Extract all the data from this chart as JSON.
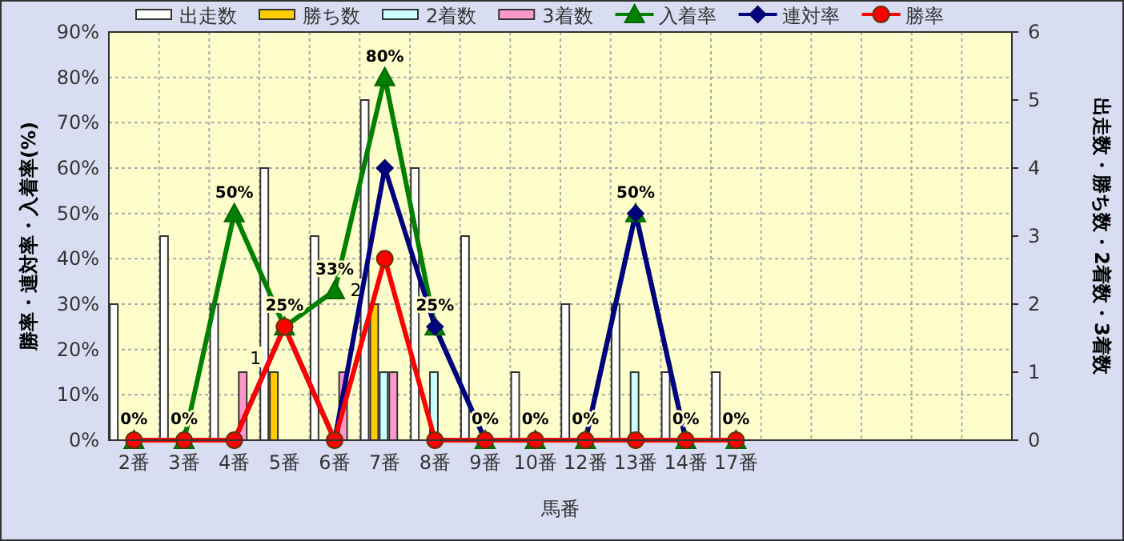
{
  "chart_data": {
    "type": "bar",
    "xlabel": "馬番",
    "ylabel": "勝率・連対率・入着率(%)",
    "y2label": "出走数・勝ち数・2着数・3着数",
    "categories": [
      "2番",
      "3番",
      "4番",
      "5番",
      "6番",
      "7番",
      "8番",
      "9番",
      "10番",
      "12番",
      "13番",
      "14番",
      "17番",
      null,
      null,
      null,
      null,
      null
    ],
    "series": [
      {
        "name": "出走数",
        "axis": "y2",
        "color": "#ffffff",
        "values": [
          2,
          3,
          2,
          4,
          3,
          5,
          4,
          3,
          1,
          2,
          2,
          1,
          1,
          null,
          null,
          null,
          null,
          null
        ]
      },
      {
        "name": "勝ち数",
        "axis": "y2",
        "color": "#ffcc00",
        "values": [
          0,
          0,
          0,
          1,
          0,
          2,
          0,
          0,
          0,
          0,
          0,
          0,
          0,
          null,
          null,
          null,
          null,
          null
        ],
        "value_labels": [
          null,
          null,
          null,
          "1",
          null,
          "2",
          null,
          null,
          null,
          null,
          null,
          null,
          null,
          null,
          null,
          null,
          null,
          null
        ]
      },
      {
        "name": "2着数",
        "axis": "y2",
        "color": "#ccffff",
        "values": [
          0,
          0,
          0,
          0,
          0,
          1,
          1,
          0,
          0,
          0,
          1,
          0,
          0,
          null,
          null,
          null,
          null,
          null
        ]
      },
      {
        "name": "3着数",
        "axis": "y2",
        "color": "#ff99cc",
        "values": [
          0,
          0,
          1,
          0,
          1,
          1,
          0,
          0,
          0,
          0,
          0,
          0,
          0,
          null,
          null,
          null,
          null,
          null
        ]
      },
      {
        "name": "入着率",
        "type": "line",
        "color": "#008000",
        "marker": "triangle",
        "values": [
          0,
          0,
          50,
          25,
          33,
          80,
          25,
          0,
          0,
          0,
          50,
          0,
          0,
          null,
          null,
          null,
          null,
          null
        ],
        "value_labels": [
          "0%",
          "0%",
          "50%",
          "25%",
          "33%",
          "80%",
          "25%",
          "0%",
          "0%",
          "0%",
          "50%",
          "0%",
          "0%",
          null,
          null,
          null,
          null,
          null
        ]
      },
      {
        "name": "連対率",
        "type": "line",
        "color": "#000080",
        "marker": "diamond",
        "values": [
          0,
          0,
          0,
          25,
          0,
          60,
          25,
          0,
          0,
          0,
          50,
          0,
          0,
          null,
          null,
          null,
          null,
          null
        ]
      },
      {
        "name": "勝率",
        "type": "line",
        "color": "#ff0000",
        "marker": "circle",
        "values": [
          0,
          0,
          0,
          25,
          0,
          40,
          0,
          0,
          0,
          0,
          0,
          0,
          0,
          null,
          null,
          null,
          null,
          null
        ]
      }
    ],
    "ylim": [
      0,
      90
    ],
    "yticks": [
      {
        "value": 0,
        "label": "0%"
      },
      {
        "value": 10,
        "label": "10%"
      },
      {
        "value": 20,
        "label": "20%"
      },
      {
        "value": 30,
        "label": "30%"
      },
      {
        "value": 40,
        "label": "40%"
      },
      {
        "value": 50,
        "label": "50%"
      },
      {
        "value": 60,
        "label": "60%"
      },
      {
        "value": 70,
        "label": "70%"
      },
      {
        "value": 80,
        "label": "80%"
      },
      {
        "value": 90,
        "label": "90%"
      }
    ],
    "y2lim": [
      0,
      6
    ],
    "y2ticks": [
      0,
      1,
      2,
      3,
      4,
      5,
      6
    ],
    "grid": true,
    "legend": "top"
  }
}
